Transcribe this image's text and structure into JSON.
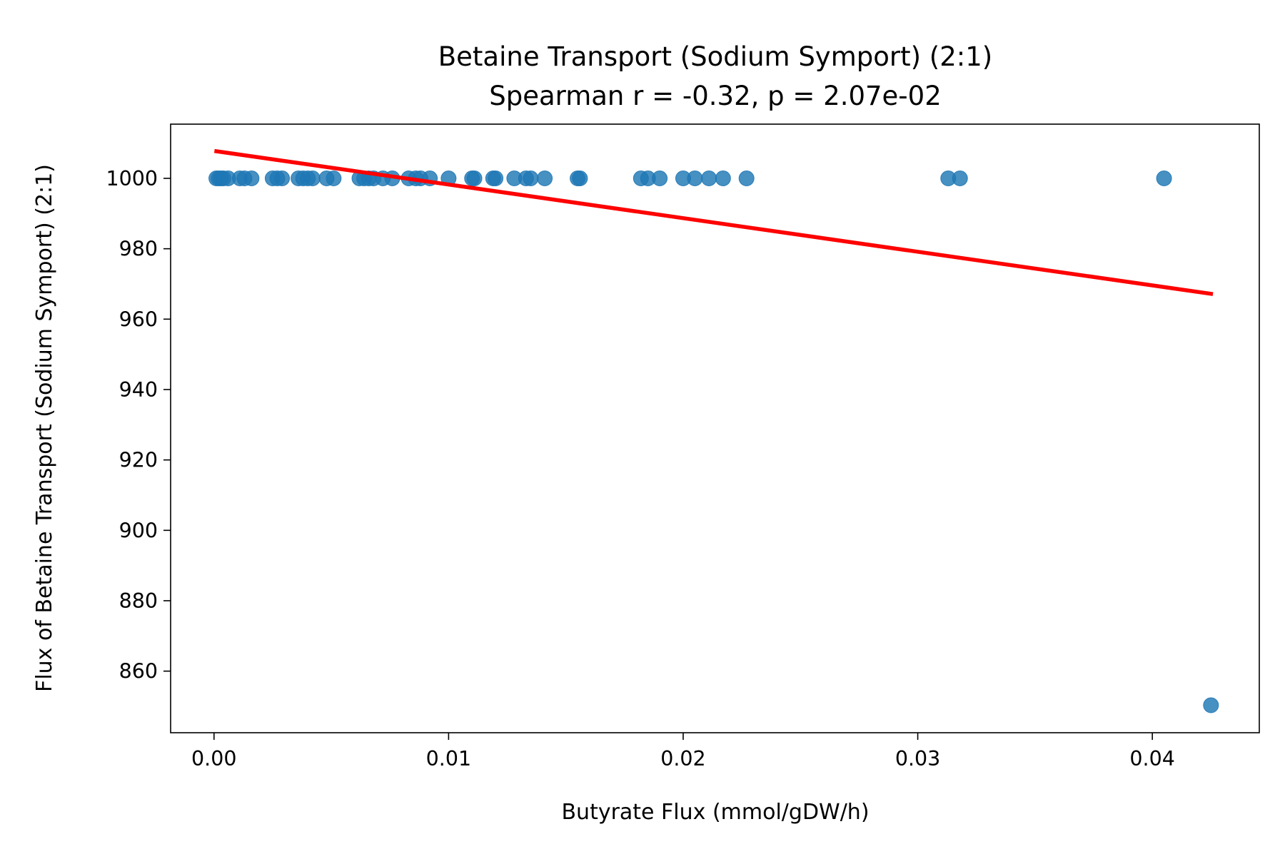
{
  "chart_data": {
    "type": "scatter",
    "title": "Betaine Transport (Sodium Symport) (2:1)",
    "subtitle": "Spearman r = -0.32, p = 2.07e-02",
    "xlabel": "Butyrate Flux (mmol/gDW/h)",
    "ylabel": "Flux of Betaine Transport (Sodium Symport) (2:1)",
    "xlim": [
      -0.00185,
      0.04456
    ],
    "ylim": [
      842.5,
      1015.4
    ],
    "x_ticks": [
      0.0,
      0.01,
      0.02,
      0.03,
      0.04
    ],
    "x_tick_labels": [
      "0.00",
      "0.01",
      "0.02",
      "0.03",
      "0.04"
    ],
    "y_ticks": [
      860,
      880,
      900,
      920,
      940,
      960,
      980,
      1000
    ],
    "y_tick_labels": [
      "860",
      "880",
      "900",
      "920",
      "940",
      "960",
      "980",
      "1000"
    ],
    "grid": false,
    "legend": "none",
    "points_color": "#1f77b4",
    "fit_color": "#ff0000",
    "points": [
      {
        "x": 0.0001,
        "y": 1000
      },
      {
        "x": 0.0002,
        "y": 1000
      },
      {
        "x": 0.0003,
        "y": 1000
      },
      {
        "x": 0.0004,
        "y": 1000
      },
      {
        "x": 0.0006,
        "y": 1000
      },
      {
        "x": 0.0011,
        "y": 1000
      },
      {
        "x": 0.0013,
        "y": 1000
      },
      {
        "x": 0.0016,
        "y": 1000
      },
      {
        "x": 0.0025,
        "y": 1000
      },
      {
        "x": 0.0027,
        "y": 1000
      },
      {
        "x": 0.0029,
        "y": 1000
      },
      {
        "x": 0.0036,
        "y": 1000
      },
      {
        "x": 0.0038,
        "y": 1000
      },
      {
        "x": 0.004,
        "y": 1000
      },
      {
        "x": 0.0042,
        "y": 1000
      },
      {
        "x": 0.0048,
        "y": 1000
      },
      {
        "x": 0.0051,
        "y": 1000
      },
      {
        "x": 0.0062,
        "y": 1000
      },
      {
        "x": 0.0064,
        "y": 1000
      },
      {
        "x": 0.0066,
        "y": 1000
      },
      {
        "x": 0.0068,
        "y": 1000
      },
      {
        "x": 0.0072,
        "y": 1000
      },
      {
        "x": 0.0076,
        "y": 1000
      },
      {
        "x": 0.0083,
        "y": 1000
      },
      {
        "x": 0.0086,
        "y": 1000
      },
      {
        "x": 0.0088,
        "y": 1000
      },
      {
        "x": 0.0092,
        "y": 1000
      },
      {
        "x": 0.01,
        "y": 1000
      },
      {
        "x": 0.011,
        "y": 1000
      },
      {
        "x": 0.0111,
        "y": 1000
      },
      {
        "x": 0.0119,
        "y": 1000
      },
      {
        "x": 0.012,
        "y": 1000
      },
      {
        "x": 0.0128,
        "y": 1000
      },
      {
        "x": 0.0133,
        "y": 1000
      },
      {
        "x": 0.0135,
        "y": 1000
      },
      {
        "x": 0.0141,
        "y": 1000
      },
      {
        "x": 0.0155,
        "y": 1000
      },
      {
        "x": 0.0156,
        "y": 1000
      },
      {
        "x": 0.0182,
        "y": 1000
      },
      {
        "x": 0.0185,
        "y": 1000
      },
      {
        "x": 0.019,
        "y": 1000
      },
      {
        "x": 0.02,
        "y": 1000
      },
      {
        "x": 0.0205,
        "y": 1000
      },
      {
        "x": 0.0211,
        "y": 1000
      },
      {
        "x": 0.0217,
        "y": 1000
      },
      {
        "x": 0.0227,
        "y": 1000
      },
      {
        "x": 0.0313,
        "y": 1000
      },
      {
        "x": 0.0318,
        "y": 1000
      },
      {
        "x": 0.0405,
        "y": 1000
      },
      {
        "x": 0.0425,
        "y": 850.3
      }
    ],
    "fit_line": {
      "x": [
        0.0001,
        0.0425
      ],
      "y": [
        1007.7,
        967.2
      ]
    }
  }
}
